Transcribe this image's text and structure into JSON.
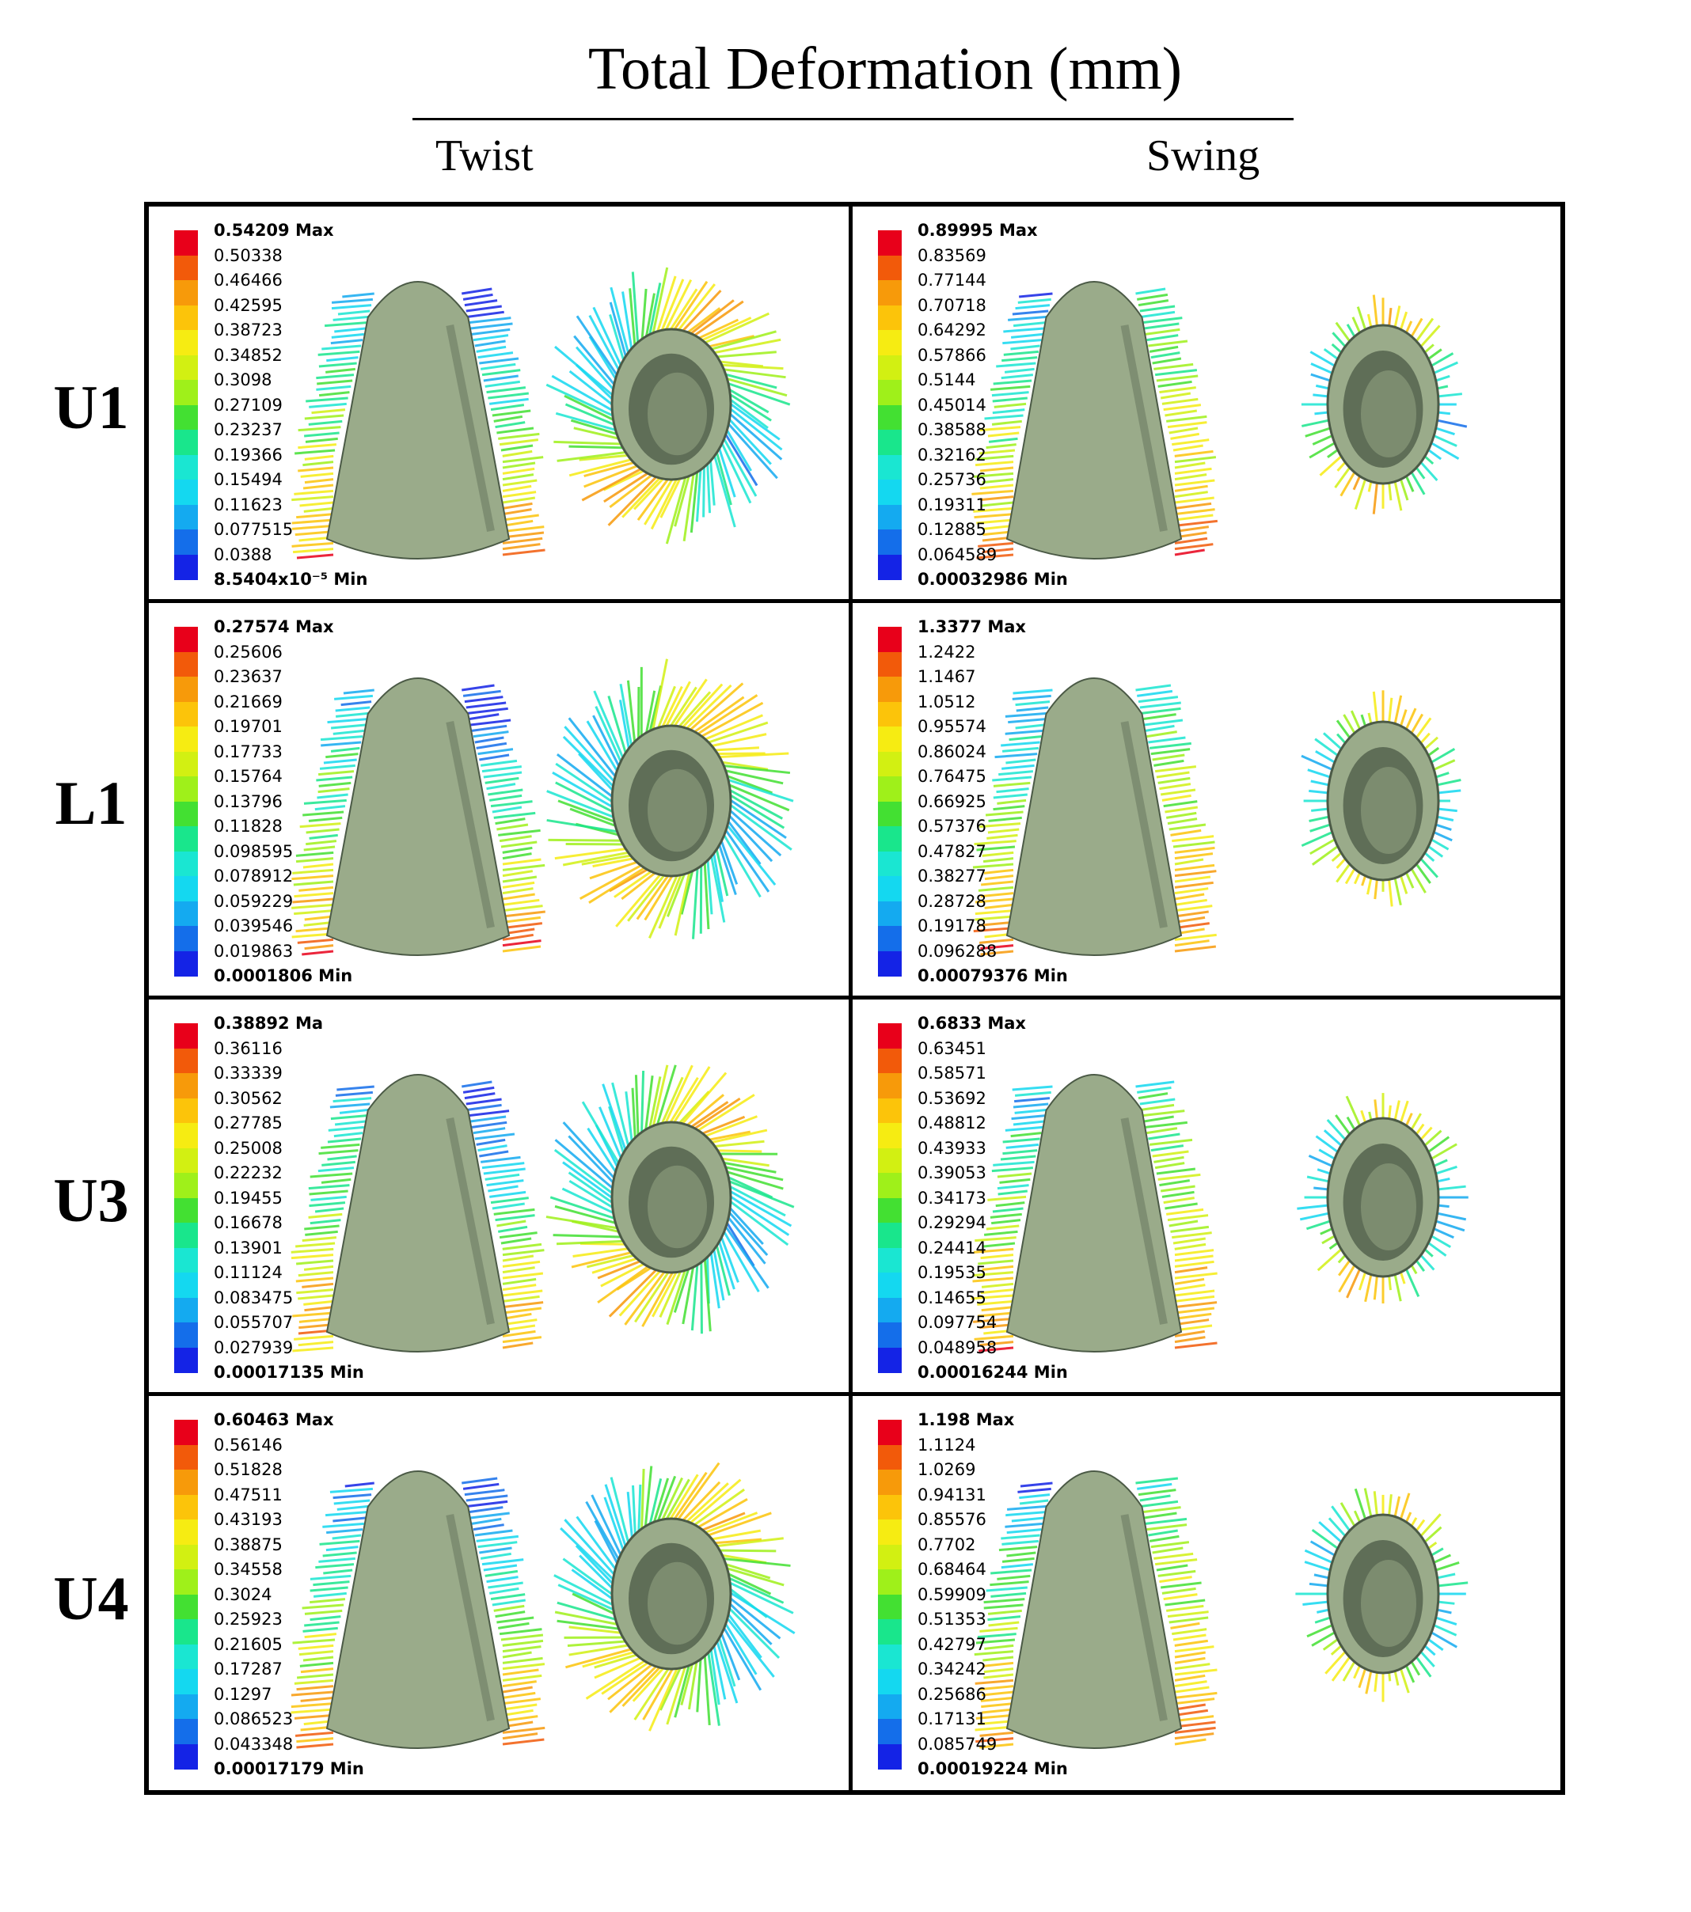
{
  "title": "Total Deformation (mm)",
  "columns": [
    "Twist",
    "Swing"
  ],
  "rows": [
    {
      "label": "U1",
      "twist": {
        "max_label": "0.54209 Max",
        "values": [
          "0.50338",
          "0.46466",
          "0.42595",
          "0.38723",
          "0.34852",
          "0.3098",
          "0.27109",
          "0.23237",
          "0.19366",
          "0.15494",
          "0.11623",
          "0.077515",
          "0.0388"
        ],
        "min_label": "8.5404x10⁻⁵ Min"
      },
      "swing": {
        "max_label": "0.89995 Max",
        "values": [
          "0.83569",
          "0.77144",
          "0.70718",
          "0.64292",
          "0.57866",
          "0.5144",
          "0.45014",
          "0.38588",
          "0.32162",
          "0.25736",
          "0.19311",
          "0.12885",
          "0.064589"
        ],
        "min_label": "0.00032986 Min"
      }
    },
    {
      "label": "L1",
      "twist": {
        "max_label": "0.27574 Max",
        "values": [
          "0.25606",
          "0.23637",
          "0.21669",
          "0.19701",
          "0.17733",
          "0.15764",
          "0.13796",
          "0.11828",
          "0.098595",
          "0.078912",
          "0.059229",
          "0.039546",
          "0.019863"
        ],
        "min_label": "0.0001806 Min"
      },
      "swing": {
        "max_label": "1.3377 Max",
        "values": [
          "1.2422",
          "1.1467",
          "1.0512",
          "0.95574",
          "0.86024",
          "0.76475",
          "0.66925",
          "0.57376",
          "0.47827",
          "0.38277",
          "0.28728",
          "0.19178",
          "0.096288"
        ],
        "min_label": "0.00079376 Min"
      }
    },
    {
      "label": "U3",
      "twist": {
        "max_label": "0.38892 Ma",
        "values": [
          "0.36116",
          "0.33339",
          "0.30562",
          "0.27785",
          "0.25008",
          "0.22232",
          "0.19455",
          "0.16678",
          "0.13901",
          "0.11124",
          "0.083475",
          "0.055707",
          "0.027939"
        ],
        "min_label": "0.00017135 Min"
      },
      "swing": {
        "max_label": "0.6833 Max",
        "values": [
          "0.63451",
          "0.58571",
          "0.53692",
          "0.48812",
          "0.43933",
          "0.39053",
          "0.34173",
          "0.29294",
          "0.24414",
          "0.19535",
          "0.14655",
          "0.097754",
          "0.048958"
        ],
        "min_label": "0.00016244 Min"
      }
    },
    {
      "label": "U4",
      "twist": {
        "max_label": "0.60463 Max",
        "values": [
          "0.56146",
          "0.51828",
          "0.47511",
          "0.43193",
          "0.38875",
          "0.34558",
          "0.3024",
          "0.25923",
          "0.21605",
          "0.17287",
          "0.1297",
          "0.086523",
          "0.043348"
        ],
        "min_label": "0.00017179 Min"
      },
      "swing": {
        "max_label": "1.198 Max",
        "values": [
          "1.1124",
          "1.0269",
          "0.94131",
          "0.85576",
          "0.7702",
          "0.68464",
          "0.59909",
          "0.51353",
          "0.42797",
          "0.34242",
          "0.25686",
          "0.17131",
          "0.085749"
        ],
        "min_label": "0.00019224 Min"
      }
    }
  ],
  "colors": {
    "scale": [
      "#e8001a",
      "#f25a0a",
      "#f79a0a",
      "#fcc40a",
      "#f6ec12",
      "#d2f012",
      "#9ff01a",
      "#43e032",
      "#19e68c",
      "#1ae6d2",
      "#14d8f0",
      "#14aaf0",
      "#146eea",
      "#1423e6"
    ],
    "tooth": "#9aab8a",
    "tooth_dark": "#4b5a46"
  }
}
